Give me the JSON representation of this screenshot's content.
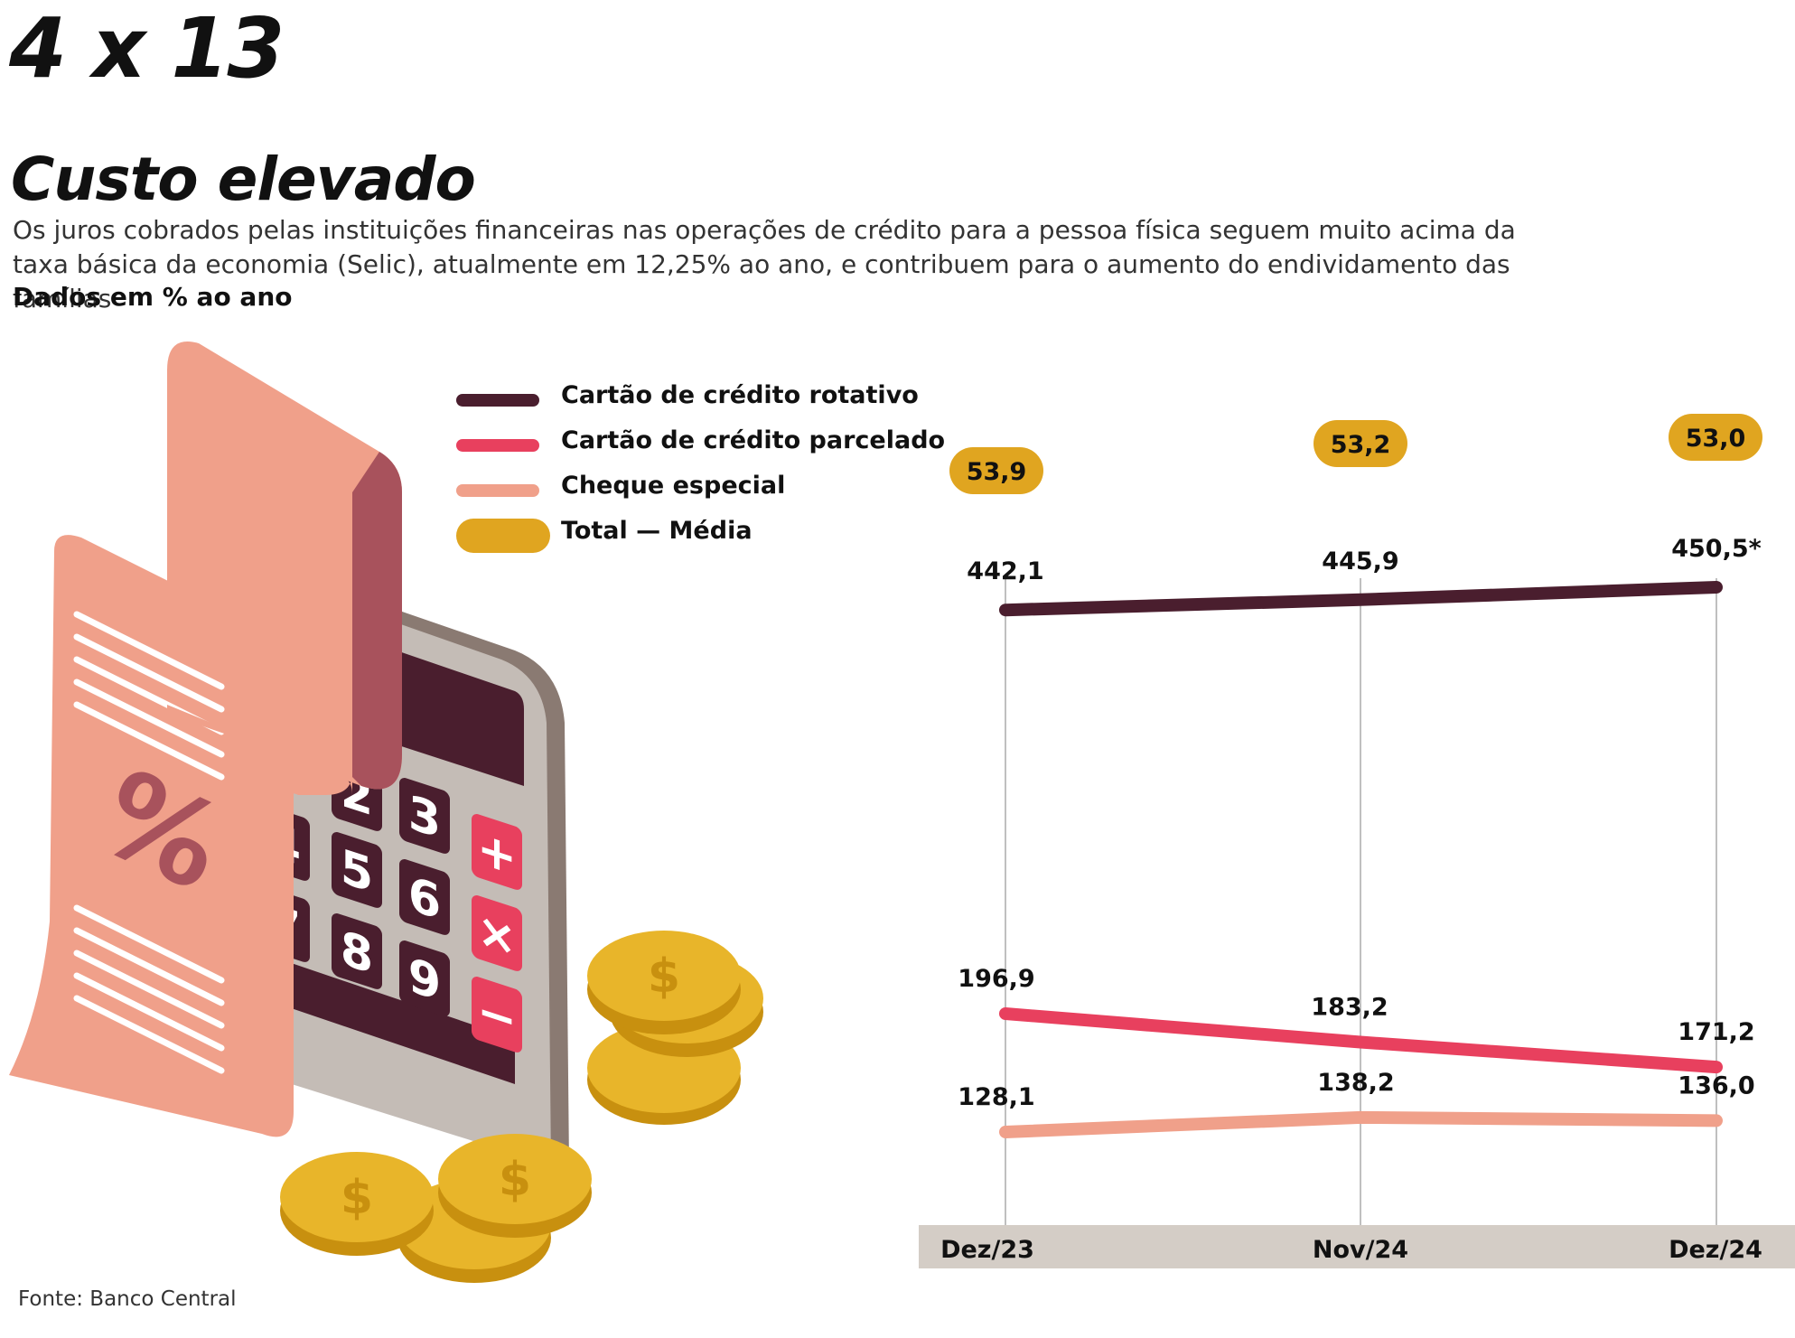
{
  "header": {
    "kicker": "4 x 13",
    "title": "Custo elevado",
    "subtitle": "Os juros cobrados pelas instituições financeiras nas operações de crédito para a pessoa física seguem muito acima da taxa básica da economia (Selic), atualmente em 12,25% ao ano, e contribuem para o aumento do endividamento das famílias",
    "unit_note": "Dados em % ao ano"
  },
  "source": "Fonte: Banco Central",
  "illustration": {
    "icons": [
      "receipt-icon",
      "calculator-icon",
      "coins-icon"
    ],
    "receipt_symbol": "%",
    "calculator_keys": [
      "2",
      "3",
      "4",
      "5",
      "6",
      "7",
      "8",
      "9",
      "+",
      "×",
      "−"
    ],
    "coin_symbol": "$"
  },
  "colors": {
    "rotativo": "#4a1e2e",
    "parcelado": "#e8405e",
    "cheque": "#f0a08a",
    "total": "#e0a520",
    "axis_band": "#d4cdc6",
    "gridline": "#aaaaaa"
  },
  "chart_data": {
    "type": "line",
    "categories": [
      "Dez/23",
      "Nov/24",
      "Dez/24"
    ],
    "series": [
      {
        "key": "rotativo",
        "name": "Cartão de crédito rotativo",
        "values": [
          442.1,
          445.9,
          450.5
        ],
        "labels": [
          "442,1",
          "445,9",
          "450,5*"
        ]
      },
      {
        "key": "parcelado",
        "name": "Cartão de crédito parcelado",
        "values": [
          196.9,
          183.2,
          171.2
        ],
        "labels": [
          "196,9",
          "183,2",
          "171,2"
        ]
      },
      {
        "key": "cheque",
        "name": "Cheque especial",
        "values": [
          128.1,
          138.2,
          136.0
        ],
        "labels": [
          "128,1",
          "138,2",
          "136,0"
        ]
      }
    ],
    "total_media": {
      "key": "total",
      "name": "Total — Média",
      "values": [
        53.9,
        53.2,
        53.0
      ],
      "labels": [
        "53,9",
        "53,2",
        "53,0"
      ]
    },
    "legend": {
      "position": "top-left",
      "items": [
        {
          "key": "rotativo",
          "label": "Cartão de crédito rotativo"
        },
        {
          "key": "parcelado",
          "label": "Cartão de crédito parcelado"
        },
        {
          "key": "cheque",
          "label": "Cheque especial"
        },
        {
          "key": "total",
          "label": "Total  —  Média"
        }
      ]
    },
    "ylim": [
      0,
      520
    ],
    "grid": "vertical lines at categories"
  }
}
